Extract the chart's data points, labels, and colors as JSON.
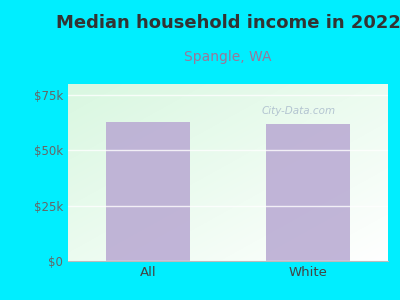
{
  "title": "Median household income in 2022",
  "subtitle": "Spangle, WA",
  "categories": [
    "All",
    "White"
  ],
  "values": [
    63000,
    62000
  ],
  "bar_color": "#bbadd4",
  "background_outer": "#00eeff",
  "title_color": "#333333",
  "subtitle_color": "#997799",
  "title_fontsize": 13,
  "subtitle_fontsize": 10,
  "tick_label_fontsize": 8.5,
  "xlabel_fontsize": 9.5,
  "ylim": [
    0,
    80000
  ],
  "yticks": [
    0,
    25000,
    50000,
    75000
  ],
  "ytick_labels": [
    "$0",
    "$25k",
    "$50k",
    "$75k"
  ],
  "watermark": "City-Data.com",
  "watermark_color": "#aabbcc"
}
